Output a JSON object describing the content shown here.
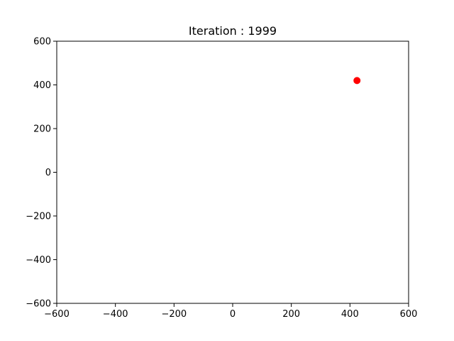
{
  "chart_data": {
    "type": "scatter",
    "title": "Iteration : 1999",
    "xlabel": "",
    "ylabel": "",
    "xlim": [
      -600,
      600
    ],
    "ylim": [
      -600,
      600
    ],
    "x_ticks": [
      -600,
      -400,
      -200,
      0,
      200,
      400,
      600
    ],
    "y_ticks": [
      -600,
      -400,
      -200,
      0,
      200,
      400,
      600
    ],
    "x_tick_labels": [
      "−600",
      "−400",
      "−200",
      "0",
      "200",
      "400",
      "600"
    ],
    "y_tick_labels": [
      "−600",
      "−400",
      "−200",
      "0",
      "200",
      "400",
      "600"
    ],
    "grid": false,
    "series": [
      {
        "color": "#ff0000",
        "points": [
          {
            "x": 424,
            "y": 420
          }
        ]
      }
    ]
  }
}
